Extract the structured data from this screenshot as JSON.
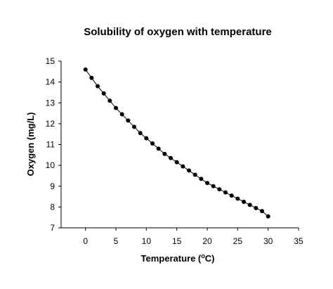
{
  "chart_data": {
    "type": "line",
    "title": "Solubility of oxygen with temperature",
    "xlabel": "Temperature (oC)",
    "xlabel_parts": {
      "before": "Temperature (",
      "sup": "o",
      "after": "C)"
    },
    "ylabel": "Oxygen (mg/L)",
    "xlim": [
      -4,
      35
    ],
    "ylim": [
      7,
      15
    ],
    "x_ticks": [
      0,
      5,
      10,
      15,
      20,
      25,
      30,
      35
    ],
    "y_ticks": [
      7,
      8,
      9,
      10,
      11,
      12,
      13,
      14,
      15
    ],
    "grid": false,
    "legend": "none",
    "series": [
      {
        "x": [
          0,
          1,
          2,
          3,
          4,
          5,
          6,
          7,
          8,
          9,
          10,
          11,
          12,
          13,
          14,
          15,
          16,
          17,
          18,
          19,
          20,
          21,
          22,
          23,
          24,
          25,
          26,
          27,
          28,
          29,
          30
        ],
        "y": [
          14.6,
          14.2,
          13.8,
          13.45,
          13.1,
          12.75,
          12.45,
          12.15,
          11.85,
          11.55,
          11.3,
          11.05,
          10.8,
          10.55,
          10.35,
          10.15,
          9.95,
          9.75,
          9.55,
          9.35,
          9.15,
          9.0,
          8.85,
          8.7,
          8.55,
          8.4,
          8.25,
          8.1,
          7.95,
          7.8,
          7.55
        ],
        "color": "#000000"
      }
    ]
  }
}
